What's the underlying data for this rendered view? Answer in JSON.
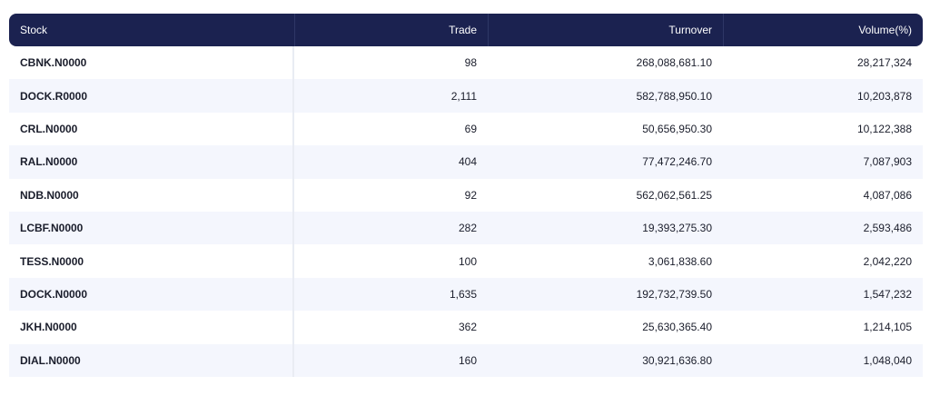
{
  "table": {
    "headers": [
      "Stock",
      "Trade",
      "Turnover",
      "Volume(%)"
    ],
    "rows": [
      [
        "CBNK.N0000",
        "98",
        "268,088,681.10",
        "28,217,324"
      ],
      [
        "DOCK.R0000",
        "2,111",
        "582,788,950.10",
        "10,203,878"
      ],
      [
        "CRL.N0000",
        "69",
        "50,656,950.30",
        "10,122,388"
      ],
      [
        "RAL.N0000",
        "404",
        "77,472,246.70",
        "7,087,903"
      ],
      [
        "NDB.N0000",
        "92",
        "562,062,561.25",
        "4,087,086"
      ],
      [
        "LCBF.N0000",
        "282",
        "19,393,275.30",
        "2,593,486"
      ],
      [
        "TESS.N0000",
        "100",
        "3,061,838.60",
        "2,042,220"
      ],
      [
        "DOCK.N0000",
        "1,635",
        "192,732,739.50",
        "1,547,232"
      ],
      [
        "JKH.N0000",
        "362",
        "25,630,365.40",
        "1,214,105"
      ],
      [
        "DIAL.N0000",
        "160",
        "30,921,636.80",
        "1,048,040"
      ]
    ]
  },
  "colors": {
    "header_bg": "#1b2250",
    "stripe_bg": "#f4f6fd"
  }
}
